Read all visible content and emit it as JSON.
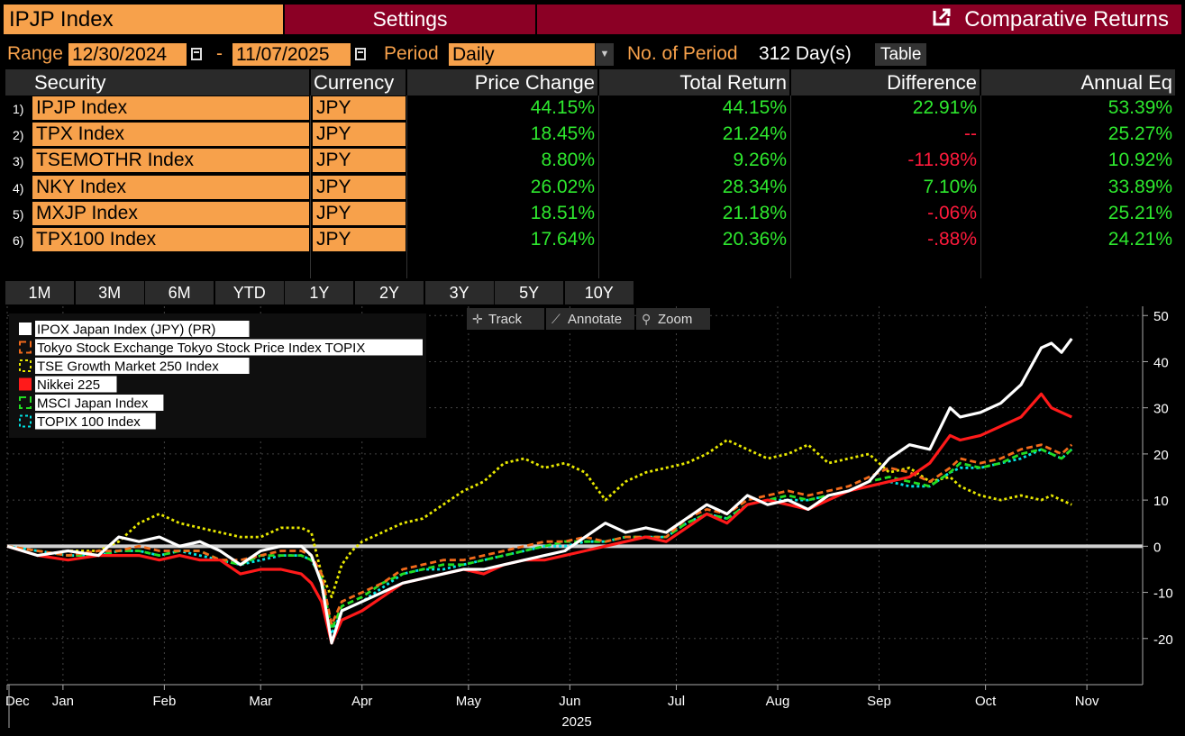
{
  "header": {
    "ticker": "IPJP Index",
    "settings_label": "Settings",
    "title": "Comparative Returns"
  },
  "controls": {
    "range_label": "Range",
    "start_date": "12/30/2024",
    "dash": "-",
    "end_date": "11/07/2025",
    "period_label": "Period",
    "period_value": "Daily",
    "num_period_label": "No. of Period",
    "num_period_value": "312 Day(s)",
    "table_button": "Table"
  },
  "table": {
    "headers": [
      "Security",
      "Currency",
      "Price Change",
      "Total Return",
      "Difference",
      "Annual Eq"
    ],
    "rows": [
      {
        "n": "1)",
        "security": "IPJP Index",
        "currency": "JPY",
        "price_change": "44.15%",
        "total_return": "44.15%",
        "difference": "22.91%",
        "annual_eq": "53.39%"
      },
      {
        "n": "2)",
        "security": "TPX Index",
        "currency": "JPY",
        "price_change": "18.45%",
        "total_return": "21.24%",
        "difference": "--",
        "annual_eq": "25.27%"
      },
      {
        "n": "3)",
        "security": "TSEMOTHR Index",
        "currency": "JPY",
        "price_change": "8.80%",
        "total_return": "9.26%",
        "difference": "-11.98%",
        "annual_eq": "10.92%"
      },
      {
        "n": "4)",
        "security": "NKY Index",
        "currency": "JPY",
        "price_change": "26.02%",
        "total_return": "28.34%",
        "difference": "7.10%",
        "annual_eq": "33.89%"
      },
      {
        "n": "5)",
        "security": "MXJP Index",
        "currency": "JPY",
        "price_change": "18.51%",
        "total_return": "21.18%",
        "difference": "-.06%",
        "annual_eq": "25.21%"
      },
      {
        "n": "6)",
        "security": "TPX100 Index",
        "currency": "JPY",
        "price_change": "17.64%",
        "total_return": "20.36%",
        "difference": "-.88%",
        "annual_eq": "24.21%"
      }
    ]
  },
  "colors": {
    "orange": "#f7a14b",
    "maroon": "#8b0025",
    "positive": "#2ee82e",
    "negative": "#ff1a3c",
    "diff_neutral": "#ff1a3c"
  },
  "period_tabs": [
    "1M",
    "3M",
    "6M",
    "YTD",
    "1Y",
    "2Y",
    "3Y",
    "5Y",
    "10Y"
  ],
  "chart_tools": {
    "track": "Track",
    "annotate": "Annotate",
    "zoom": "Zoom"
  },
  "chart_data": {
    "type": "line",
    "title": "",
    "xlabel": "2025",
    "ylabel": "",
    "ylim": [
      -30,
      52
    ],
    "yticks": [
      50,
      40,
      30,
      20,
      10,
      0,
      -10,
      -20
    ],
    "ytick_labels": [
      "50",
      "40",
      "30",
      "20",
      "10",
      "0",
      "-10",
      "-20"
    ],
    "x_range": [
      0,
      11.2
    ],
    "x_ticks": [
      {
        "label": "Dec",
        "x": 0.0
      },
      {
        "label": "Jan",
        "x": 0.55
      },
      {
        "label": "Feb",
        "x": 1.55
      },
      {
        "label": "Mar",
        "x": 2.5
      },
      {
        "label": "Apr",
        "x": 3.5
      },
      {
        "label": "May",
        "x": 4.55
      },
      {
        "label": "Jun",
        "x": 5.55
      },
      {
        "label": "Jul",
        "x": 6.6
      },
      {
        "label": "Aug",
        "x": 7.6
      },
      {
        "label": "Sep",
        "x": 8.6
      },
      {
        "label": "Oct",
        "x": 9.65
      },
      {
        "label": "Nov",
        "x": 10.65
      }
    ],
    "legend_position": "top-left",
    "series": [
      {
        "name": "IPOX Japan Index (JPY) (PR)",
        "color": "#ffffff",
        "style": "solid",
        "x": [
          0,
          0.3,
          0.6,
          0.9,
          1.1,
          1.3,
          1.5,
          1.7,
          1.9,
          2.1,
          2.3,
          2.5,
          2.7,
          2.9,
          3.0,
          3.1,
          3.2,
          3.3,
          3.4,
          3.5,
          3.7,
          3.9,
          4.1,
          4.3,
          4.5,
          4.7,
          4.9,
          5.1,
          5.3,
          5.5,
          5.7,
          5.9,
          6.1,
          6.3,
          6.5,
          6.7,
          6.9,
          7.1,
          7.3,
          7.5,
          7.7,
          7.9,
          8.1,
          8.3,
          8.5,
          8.7,
          8.9,
          9.1,
          9.3,
          9.4,
          9.6,
          9.8,
          10.0,
          10.2,
          10.3,
          10.4,
          10.5
        ],
        "y": [
          0,
          -2,
          -1,
          -2,
          2,
          1,
          2,
          0,
          1,
          -1,
          -4,
          -1,
          0,
          0,
          -2,
          -8,
          -21,
          -14,
          -13,
          -12,
          -10,
          -8,
          -7,
          -6,
          -5,
          -5,
          -4,
          -3,
          -2,
          -1,
          2,
          5,
          3,
          4,
          3,
          6,
          9,
          7,
          11,
          9,
          10,
          8,
          11,
          12,
          14,
          19,
          22,
          21,
          30,
          28,
          29,
          31,
          35,
          43,
          44,
          42,
          45
        ]
      },
      {
        "name": "Tokyo Stock Exchange Tokyo Stock Price Index TOPIX",
        "color": "#f26a1b",
        "style": "dash",
        "x": [
          0,
          0.3,
          0.6,
          0.9,
          1.1,
          1.3,
          1.5,
          1.7,
          1.9,
          2.1,
          2.3,
          2.5,
          2.7,
          2.9,
          3.0,
          3.1,
          3.2,
          3.3,
          3.4,
          3.5,
          3.7,
          3.9,
          4.1,
          4.3,
          4.5,
          4.7,
          4.9,
          5.1,
          5.3,
          5.5,
          5.7,
          5.9,
          6.1,
          6.3,
          6.5,
          6.7,
          6.9,
          7.1,
          7.3,
          7.5,
          7.7,
          7.9,
          8.1,
          8.3,
          8.5,
          8.7,
          8.9,
          9.1,
          9.3,
          9.4,
          9.6,
          9.8,
          10.0,
          10.2,
          10.3,
          10.4,
          10.5
        ],
        "y": [
          0,
          -1,
          -2,
          -1,
          -1,
          0,
          -1,
          -1,
          -1,
          -3,
          -3,
          -2,
          -1,
          -1,
          -2,
          -6,
          -17,
          -12,
          -11,
          -10,
          -8,
          -5,
          -4,
          -3,
          -3,
          -2,
          -1,
          0,
          1,
          1,
          2,
          1,
          2,
          2,
          2,
          6,
          8,
          7,
          10,
          11,
          12,
          11,
          12,
          13,
          15,
          17,
          16,
          14,
          17,
          19,
          18,
          19,
          21,
          22,
          21,
          20,
          22
        ]
      },
      {
        "name": "TSE Growth Market 250 Index",
        "color": "#e8e800",
        "style": "dot",
        "x": [
          0,
          0.3,
          0.6,
          0.9,
          1.1,
          1.3,
          1.5,
          1.7,
          1.9,
          2.1,
          2.3,
          2.5,
          2.7,
          2.9,
          3.0,
          3.1,
          3.2,
          3.3,
          3.4,
          3.5,
          3.7,
          3.9,
          4.1,
          4.3,
          4.5,
          4.7,
          4.9,
          5.1,
          5.3,
          5.5,
          5.7,
          5.9,
          6.1,
          6.3,
          6.5,
          6.7,
          6.9,
          7.1,
          7.3,
          7.5,
          7.7,
          7.9,
          8.1,
          8.3,
          8.5,
          8.7,
          8.9,
          9.1,
          9.3,
          9.4,
          9.6,
          9.8,
          10.0,
          10.2,
          10.3,
          10.4,
          10.5
        ],
        "y": [
          0,
          -2,
          -1,
          -1,
          1,
          5,
          7,
          5,
          4,
          3,
          2,
          2,
          4,
          4,
          3,
          -6,
          -11,
          -4,
          -1,
          1,
          3,
          5,
          6,
          9,
          12,
          14,
          18,
          19,
          17,
          18,
          16,
          10,
          14,
          16,
          17,
          18,
          20,
          23,
          21,
          19,
          20,
          22,
          18,
          19,
          20,
          16,
          17,
          14,
          15,
          13,
          11,
          10,
          11,
          10,
          11,
          10,
          9
        ]
      },
      {
        "name": "Nikkei 225",
        "color": "#ff1a1a",
        "style": "solid",
        "x": [
          0,
          0.3,
          0.6,
          0.9,
          1.1,
          1.3,
          1.5,
          1.7,
          1.9,
          2.1,
          2.3,
          2.5,
          2.7,
          2.9,
          3.0,
          3.1,
          3.2,
          3.3,
          3.4,
          3.5,
          3.7,
          3.9,
          4.1,
          4.3,
          4.5,
          4.7,
          4.9,
          5.1,
          5.3,
          5.5,
          5.7,
          5.9,
          6.1,
          6.3,
          6.5,
          6.7,
          6.9,
          7.1,
          7.3,
          7.5,
          7.7,
          7.9,
          8.1,
          8.3,
          8.5,
          8.7,
          8.9,
          9.1,
          9.3,
          9.4,
          9.6,
          9.8,
          10.0,
          10.2,
          10.3,
          10.4,
          10.5
        ],
        "y": [
          0,
          -2,
          -3,
          -2,
          -2,
          -2,
          -3,
          -2,
          -3,
          -3,
          -6,
          -5,
          -5,
          -6,
          -8,
          -12,
          -21,
          -16,
          -15,
          -14,
          -11,
          -8,
          -7,
          -6,
          -5,
          -6,
          -4,
          -3,
          -3,
          -2,
          -1,
          0,
          1,
          2,
          1,
          4,
          7,
          5,
          9,
          10,
          9,
          8,
          10,
          12,
          13,
          14,
          15,
          18,
          24,
          23,
          24,
          26,
          28,
          33,
          30,
          29,
          28
        ]
      },
      {
        "name": "MSCI Japan Index",
        "color": "#22dd22",
        "style": "dash",
        "x": [
          0,
          0.3,
          0.6,
          0.9,
          1.1,
          1.3,
          1.5,
          1.7,
          1.9,
          2.1,
          2.3,
          2.5,
          2.7,
          2.9,
          3.0,
          3.1,
          3.2,
          3.3,
          3.4,
          3.5,
          3.7,
          3.9,
          4.1,
          4.3,
          4.5,
          4.7,
          4.9,
          5.1,
          5.3,
          5.5,
          5.7,
          5.9,
          6.1,
          6.3,
          6.5,
          6.7,
          6.9,
          7.1,
          7.3,
          7.5,
          7.7,
          7.9,
          8.1,
          8.3,
          8.5,
          8.7,
          8.9,
          9.1,
          9.3,
          9.4,
          9.6,
          9.8,
          10.0,
          10.2,
          10.3,
          10.4,
          10.5
        ],
        "y": [
          0,
          -1,
          -2,
          -2,
          -1,
          -1,
          -2,
          -1,
          -1,
          -3,
          -4,
          -2,
          -2,
          -2,
          -3,
          -7,
          -18,
          -13,
          -12,
          -11,
          -8,
          -6,
          -5,
          -4,
          -4,
          -3,
          -2,
          -1,
          0,
          1,
          1,
          1,
          2,
          2,
          2,
          5,
          7,
          6,
          9,
          10,
          11,
          10,
          11,
          12,
          14,
          15,
          14,
          13,
          16,
          18,
          17,
          18,
          20,
          21,
          20,
          19,
          21
        ]
      },
      {
        "name": "TOPIX 100 Index",
        "color": "#00e5e5",
        "style": "dot",
        "x": [
          0,
          0.3,
          0.6,
          0.9,
          1.1,
          1.3,
          1.5,
          1.7,
          1.9,
          2.1,
          2.3,
          2.5,
          2.7,
          2.9,
          3.0,
          3.1,
          3.2,
          3.3,
          3.4,
          3.5,
          3.7,
          3.9,
          4.1,
          4.3,
          4.5,
          4.7,
          4.9,
          5.1,
          5.3,
          5.5,
          5.7,
          5.9,
          6.1,
          6.3,
          6.5,
          6.7,
          6.9,
          7.1,
          7.3,
          7.5,
          7.7,
          7.9,
          8.1,
          8.3,
          8.5,
          8.7,
          8.9,
          9.1,
          9.3,
          9.4,
          9.6,
          9.8,
          10.0,
          10.2,
          10.3,
          10.4,
          10.5
        ],
        "y": [
          0,
          -1,
          -2,
          -2,
          -1,
          -1,
          -2,
          -1,
          -2,
          -3,
          -4,
          -3,
          -2,
          -2,
          -3,
          -7,
          -19,
          -14,
          -13,
          -12,
          -9,
          -6,
          -5,
          -5,
          -4,
          -3,
          -2,
          -1,
          0,
          0,
          1,
          1,
          2,
          2,
          2,
          5,
          7,
          6,
          9,
          10,
          10,
          10,
          11,
          12,
          13,
          14,
          13,
          13,
          16,
          17,
          17,
          18,
          19,
          21,
          20,
          19,
          21
        ]
      }
    ]
  }
}
